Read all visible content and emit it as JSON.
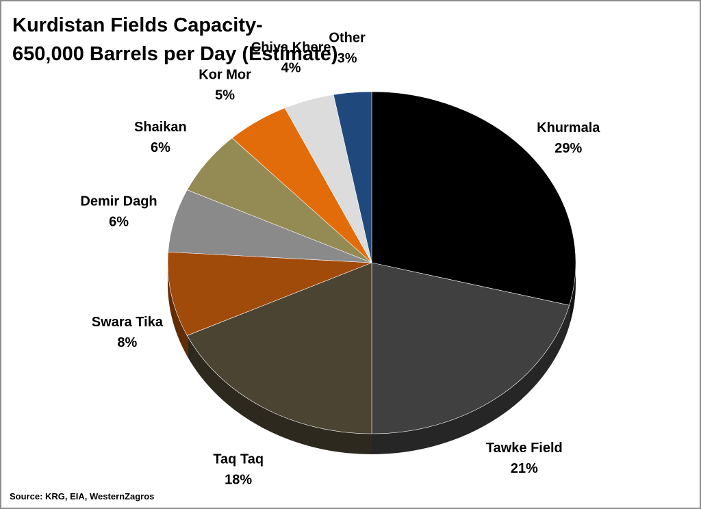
{
  "title_line1": "Kurdistan Fields Capacity-",
  "title_line2": "650,000 Barrels per Day (Estimate)",
  "source": "Source: KRG, EIA, WesternZagros",
  "chart_data": {
    "type": "pie",
    "title": "Kurdistan Fields Capacity- 650,000 Barrels per Day (Estimate)",
    "unit": "%",
    "slices": [
      {
        "name": "Khurmala",
        "value": 29,
        "label": "29%",
        "color": "#000000"
      },
      {
        "name": "Tawke Field",
        "value": 21,
        "label": "21%",
        "color": "#404040"
      },
      {
        "name": "Taq Taq",
        "value": 18,
        "label": "18%",
        "color": "#4b4432"
      },
      {
        "name": "Swara Tika",
        "value": 8,
        "label": "8%",
        "color": "#a14b0b"
      },
      {
        "name": "Demir Dagh",
        "value": 6,
        "label": "6%",
        "color": "#8a8a8a"
      },
      {
        "name": "Shaikan",
        "value": 6,
        "label": "6%",
        "color": "#948a54"
      },
      {
        "name": "Kor Mor",
        "value": 5,
        "label": "5%",
        "color": "#e36c0a"
      },
      {
        "name": "Chiya Khere",
        "value": 4,
        "label": "4%",
        "color": "#dcdcdc"
      },
      {
        "name": "Other",
        "value": 3,
        "label": "3%",
        "color": "#1f497d"
      }
    ]
  }
}
